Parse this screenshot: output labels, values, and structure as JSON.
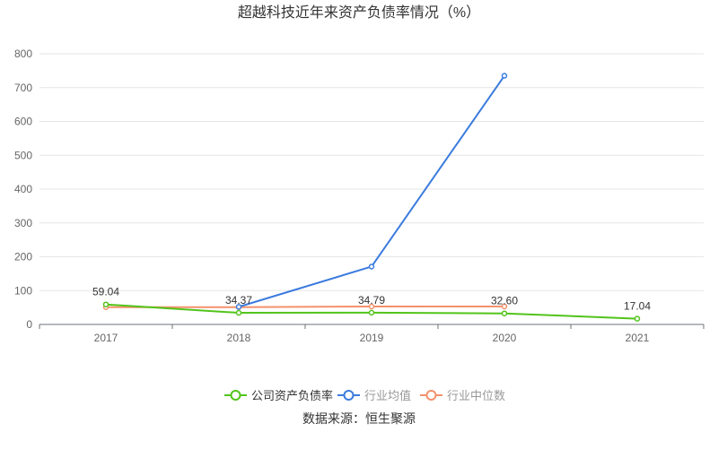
{
  "chart_data": {
    "type": "line",
    "title": "超越科技近年来资产负债率情况（%）",
    "categories": [
      "2017",
      "2018",
      "2019",
      "2020",
      "2021"
    ],
    "ylim": [
      0,
      800
    ],
    "yticks": [
      "0",
      "100",
      "200",
      "300",
      "400",
      "500",
      "600",
      "700",
      "800"
    ],
    "grid": true,
    "legend_position": "bottom",
    "series": [
      {
        "name": "公司资产负债率",
        "color": "#52c41a",
        "values": [
          59.04,
          34.37,
          34.79,
          32.6,
          17.04
        ],
        "labels": [
          "59.04",
          "34.37",
          "34.79",
          "32.60",
          "17.04"
        ]
      },
      {
        "name": "行业均值",
        "color": "#3b7bde",
        "values": [
          null,
          52,
          171,
          735,
          null
        ]
      },
      {
        "name": "行业中位数",
        "color": "#f4916b",
        "values": [
          51,
          51,
          53,
          53,
          null
        ]
      }
    ],
    "source": "数据来源：恒生聚源"
  }
}
